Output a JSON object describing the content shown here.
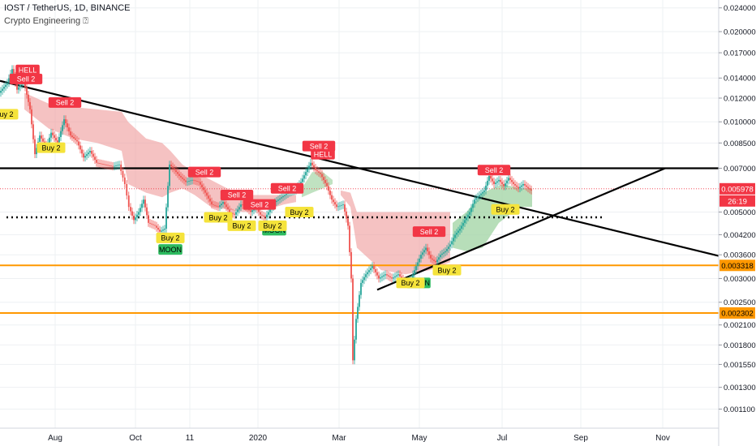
{
  "header": {
    "symbol_line": "IOST / TetherUS, 1D, BINANCE",
    "indicator_line": "Crypto Engineering ⍰"
  },
  "chart_data": {
    "type": "candlestick",
    "y_scale": "log",
    "ylim": [
      0.00095,
      0.0255
    ],
    "y_ticks": [
      "0.024000",
      "0.020000",
      "0.017000",
      "0.014000",
      "0.012000",
      "0.010000",
      "0.008500",
      "0.007000",
      "0.005000",
      "0.004200",
      "0.003600",
      "0.003000",
      "0.002500",
      "0.002100",
      "0.001800",
      "0.001550",
      "0.001300",
      "0.001100"
    ],
    "x_ticks": [
      "Aug",
      "Oct",
      "11",
      "2020",
      "Mar",
      "May",
      "Jul",
      "Sep",
      "Nov"
    ],
    "price_badges": [
      {
        "value": "0.005978",
        "bg": "#f23645",
        "fg": "#ffffff"
      },
      {
        "value": "26:19",
        "bg": "#f23645",
        "fg": "#ffffff"
      },
      {
        "value": "0.003318",
        "bg": "#ff9800",
        "fg": "#000000"
      },
      {
        "value": "0.002302",
        "bg": "#ff9800",
        "fg": "#000000"
      }
    ],
    "horizontal_levels": [
      {
        "value": 0.007,
        "style": "solid",
        "color": "#000000"
      },
      {
        "value": 0.0048,
        "style": "dotted",
        "color": "#000000"
      },
      {
        "value": 0.003318,
        "style": "solid",
        "color": "#ff9800"
      },
      {
        "value": 0.002302,
        "style": "solid",
        "color": "#ff9800"
      },
      {
        "value": 0.005978,
        "style": "dotted",
        "color": "#f23645"
      }
    ],
    "price_path": [
      [
        0,
        0.0125
      ],
      [
        10,
        0.0135
      ],
      [
        16,
        0.015
      ],
      [
        22,
        0.0128
      ],
      [
        30,
        0.0138
      ],
      [
        38,
        0.011
      ],
      [
        44,
        0.0078
      ],
      [
        50,
        0.009
      ],
      [
        58,
        0.0082
      ],
      [
        64,
        0.0092
      ],
      [
        72,
        0.0085
      ],
      [
        80,
        0.0102
      ],
      [
        88,
        0.009
      ],
      [
        96,
        0.0086
      ],
      [
        104,
        0.0076
      ],
      [
        112,
        0.008
      ],
      [
        120,
        0.0073
      ],
      [
        130,
        0.0072
      ],
      [
        140,
        0.0071
      ],
      [
        148,
        0.0072
      ],
      [
        155,
        0.0062
      ],
      [
        160,
        0.0052
      ],
      [
        166,
        0.0047
      ],
      [
        172,
        0.005
      ],
      [
        178,
        0.0055
      ],
      [
        184,
        0.0046
      ],
      [
        192,
        0.0045
      ],
      [
        198,
        0.0043
      ],
      [
        204,
        0.0044
      ],
      [
        210,
        0.0072
      ],
      [
        216,
        0.0069
      ],
      [
        222,
        0.0066
      ],
      [
        230,
        0.0063
      ],
      [
        238,
        0.0064
      ],
      [
        246,
        0.0063
      ],
      [
        254,
        0.0058
      ],
      [
        262,
        0.0053
      ],
      [
        270,
        0.0052
      ],
      [
        276,
        0.0054
      ],
      [
        284,
        0.005
      ],
      [
        290,
        0.0049
      ],
      [
        298,
        0.0053
      ],
      [
        304,
        0.0052
      ],
      [
        310,
        0.005
      ],
      [
        316,
        0.0052
      ],
      [
        322,
        0.0049
      ],
      [
        328,
        0.0048
      ],
      [
        334,
        0.0051
      ],
      [
        340,
        0.0054
      ],
      [
        348,
        0.0056
      ],
      [
        356,
        0.0058
      ],
      [
        364,
        0.0059
      ],
      [
        372,
        0.0063
      ],
      [
        378,
        0.0068
      ],
      [
        384,
        0.0073
      ],
      [
        390,
        0.0069
      ],
      [
        396,
        0.0067
      ],
      [
        404,
        0.0061
      ],
      [
        410,
        0.0055
      ],
      [
        416,
        0.0052
      ],
      [
        424,
        0.0053
      ],
      [
        430,
        0.0045
      ],
      [
        434,
        0.003
      ],
      [
        436,
        0.0016
      ],
      [
        440,
        0.0022
      ],
      [
        446,
        0.0029
      ],
      [
        452,
        0.0031
      ],
      [
        460,
        0.0033
      ],
      [
        468,
        0.003
      ],
      [
        476,
        0.0031
      ],
      [
        484,
        0.003
      ],
      [
        492,
        0.0031
      ],
      [
        500,
        0.0029
      ],
      [
        508,
        0.003
      ],
      [
        514,
        0.0033
      ],
      [
        520,
        0.0036
      ],
      [
        526,
        0.0038
      ],
      [
        532,
        0.0035
      ],
      [
        538,
        0.0034
      ],
      [
        544,
        0.0036
      ],
      [
        550,
        0.0037
      ],
      [
        556,
        0.0039
      ],
      [
        562,
        0.0042
      ],
      [
        568,
        0.0044
      ],
      [
        574,
        0.0047
      ],
      [
        580,
        0.005
      ],
      [
        586,
        0.0055
      ],
      [
        592,
        0.0057
      ],
      [
        598,
        0.0059
      ],
      [
        604,
        0.0066
      ],
      [
        610,
        0.0062
      ],
      [
        616,
        0.0064
      ],
      [
        622,
        0.0061
      ],
      [
        628,
        0.0065
      ],
      [
        634,
        0.0062
      ],
      [
        640,
        0.006
      ],
      [
        646,
        0.0062
      ],
      [
        652,
        0.006
      ],
      [
        656,
        0.0059
      ]
    ],
    "cloud_segments": [
      {
        "color": "#ef9a9a",
        "opacity": 0.6,
        "upper": [
          [
            30,
            0.0125
          ],
          [
            60,
            0.0115
          ],
          [
            90,
            0.0112
          ],
          [
            120,
            0.011
          ],
          [
            150,
            0.0108
          ],
          [
            158,
            0.01
          ],
          [
            180,
            0.0088
          ],
          [
            200,
            0.0085
          ],
          [
            210,
            0.008
          ],
          [
            225,
            0.0072
          ],
          [
            240,
            0.0068
          ],
          [
            260,
            0.0064
          ],
          [
            280,
            0.006
          ],
          [
            300,
            0.0057
          ],
          [
            330,
            0.0057
          ],
          [
            350,
            0.0057
          ],
          [
            365,
            0.0057
          ]
        ],
        "lower": [
          [
            30,
            0.011
          ],
          [
            60,
            0.0095
          ],
          [
            90,
            0.0088
          ],
          [
            120,
            0.0085
          ],
          [
            150,
            0.008
          ],
          [
            158,
            0.0062
          ],
          [
            180,
            0.0058
          ],
          [
            200,
            0.0056
          ],
          [
            210,
            0.0058
          ],
          [
            225,
            0.006
          ],
          [
            240,
            0.0057
          ],
          [
            260,
            0.0052
          ],
          [
            280,
            0.0051
          ],
          [
            300,
            0.005
          ],
          [
            330,
            0.0051
          ],
          [
            350,
            0.0053
          ],
          [
            365,
            0.0054
          ]
        ]
      },
      {
        "color": "#a5d6a7",
        "opacity": 0.7,
        "upper": [
          [
            372,
            0.006
          ],
          [
            385,
            0.0068
          ],
          [
            398,
            0.0068
          ],
          [
            410,
            0.0064
          ]
        ],
        "lower": [
          [
            372,
            0.0056
          ],
          [
            385,
            0.0058
          ],
          [
            398,
            0.006
          ],
          [
            410,
            0.0062
          ]
        ]
      },
      {
        "color": "#ef9a9a",
        "opacity": 0.6,
        "upper": [
          [
            420,
            0.0059
          ],
          [
            432,
            0.0058
          ],
          [
            440,
            0.005
          ],
          [
            470,
            0.005
          ],
          [
            500,
            0.005
          ],
          [
            530,
            0.005
          ],
          [
            555,
            0.005
          ]
        ],
        "lower": [
          [
            420,
            0.0057
          ],
          [
            432,
            0.0052
          ],
          [
            440,
            0.0038
          ],
          [
            470,
            0.0032
          ],
          [
            500,
            0.0031
          ],
          [
            530,
            0.0032
          ],
          [
            555,
            0.0034
          ]
        ]
      },
      {
        "color": "#a5d6a7",
        "opacity": 0.8,
        "upper": [
          [
            558,
            0.0046
          ],
          [
            575,
            0.005
          ],
          [
            595,
            0.0058
          ],
          [
            620,
            0.0062
          ],
          [
            640,
            0.006
          ],
          [
            656,
            0.006
          ]
        ],
        "lower": [
          [
            558,
            0.0038
          ],
          [
            575,
            0.0037
          ],
          [
            595,
            0.0038
          ],
          [
            615,
            0.0046
          ],
          [
            640,
            0.0052
          ],
          [
            656,
            0.0052
          ]
        ]
      }
    ],
    "trendlines": [
      {
        "from": [
          0,
          0.0137
        ],
        "to": [
          886,
          0.00357
        ],
        "color": "#000000"
      },
      {
        "from": [
          465,
          0.00275
        ],
        "to": [
          820,
          0.007
        ],
        "color": "#000000"
      }
    ],
    "signal_labels": [
      {
        "text": "HELL",
        "kind": "sell",
        "x": 34,
        "value": 0.0149
      },
      {
        "text": "Sell 2",
        "kind": "sell",
        "x": 32,
        "value": 0.0139
      },
      {
        "text": "Sell 2",
        "kind": "sell",
        "x": 80,
        "value": 0.0116
      },
      {
        "text": "Buy 2",
        "kind": "buy",
        "x": 5,
        "value": 0.0106
      },
      {
        "text": "Buy 2",
        "kind": "buy",
        "x": 63,
        "value": 0.0082
      },
      {
        "text": "Buy 2",
        "kind": "buy",
        "x": 210,
        "value": 0.0041
      },
      {
        "text": "MOON",
        "kind": "moon",
        "x": 210,
        "value": 0.00375
      },
      {
        "text": "Sell 2",
        "kind": "sell",
        "x": 252,
        "value": 0.0068
      },
      {
        "text": "Sell 2",
        "kind": "sell",
        "x": 292,
        "value": 0.0057
      },
      {
        "text": "Sell 2",
        "kind": "sell",
        "x": 320,
        "value": 0.0053
      },
      {
        "text": "Buy 2",
        "kind": "buy",
        "x": 269,
        "value": 0.0048
      },
      {
        "text": "Buy 2",
        "kind": "buy",
        "x": 298,
        "value": 0.0045
      },
      {
        "text": "MOON",
        "kind": "moon",
        "x": 338,
        "value": 0.00435
      },
      {
        "text": "Buy 2",
        "kind": "buy",
        "x": 336,
        "value": 0.0045
      },
      {
        "text": "Sell 2",
        "kind": "sell",
        "x": 354,
        "value": 0.006
      },
      {
        "text": "Buy 2",
        "kind": "buy",
        "x": 369,
        "value": 0.005
      },
      {
        "text": "Sell 2",
        "kind": "sell",
        "x": 393,
        "value": 0.0083
      },
      {
        "text": "HELL",
        "kind": "sell",
        "x": 398,
        "value": 0.0078
      },
      {
        "text": "Sell 2",
        "kind": "sell",
        "x": 529,
        "value": 0.0043
      },
      {
        "text": "Buy 2",
        "kind": "buy",
        "x": 551,
        "value": 0.0032
      },
      {
        "text": "MOON",
        "kind": "moon",
        "x": 516,
        "value": 0.0029
      },
      {
        "text": "Buy 2",
        "kind": "buy",
        "x": 506,
        "value": 0.0029
      },
      {
        "text": "Sell 2",
        "kind": "sell",
        "x": 609,
        "value": 0.0069
      },
      {
        "text": "Buy 2",
        "kind": "buy",
        "x": 623,
        "value": 0.0051
      }
    ],
    "colors": {
      "up": "#26a69a",
      "down": "#ef5350",
      "sell_bg": "#f23645",
      "buy_bg": "#f5e33b",
      "moon_bg": "#2dbb5f",
      "axis_text": "#131722",
      "grid": "#eef0f3"
    }
  }
}
